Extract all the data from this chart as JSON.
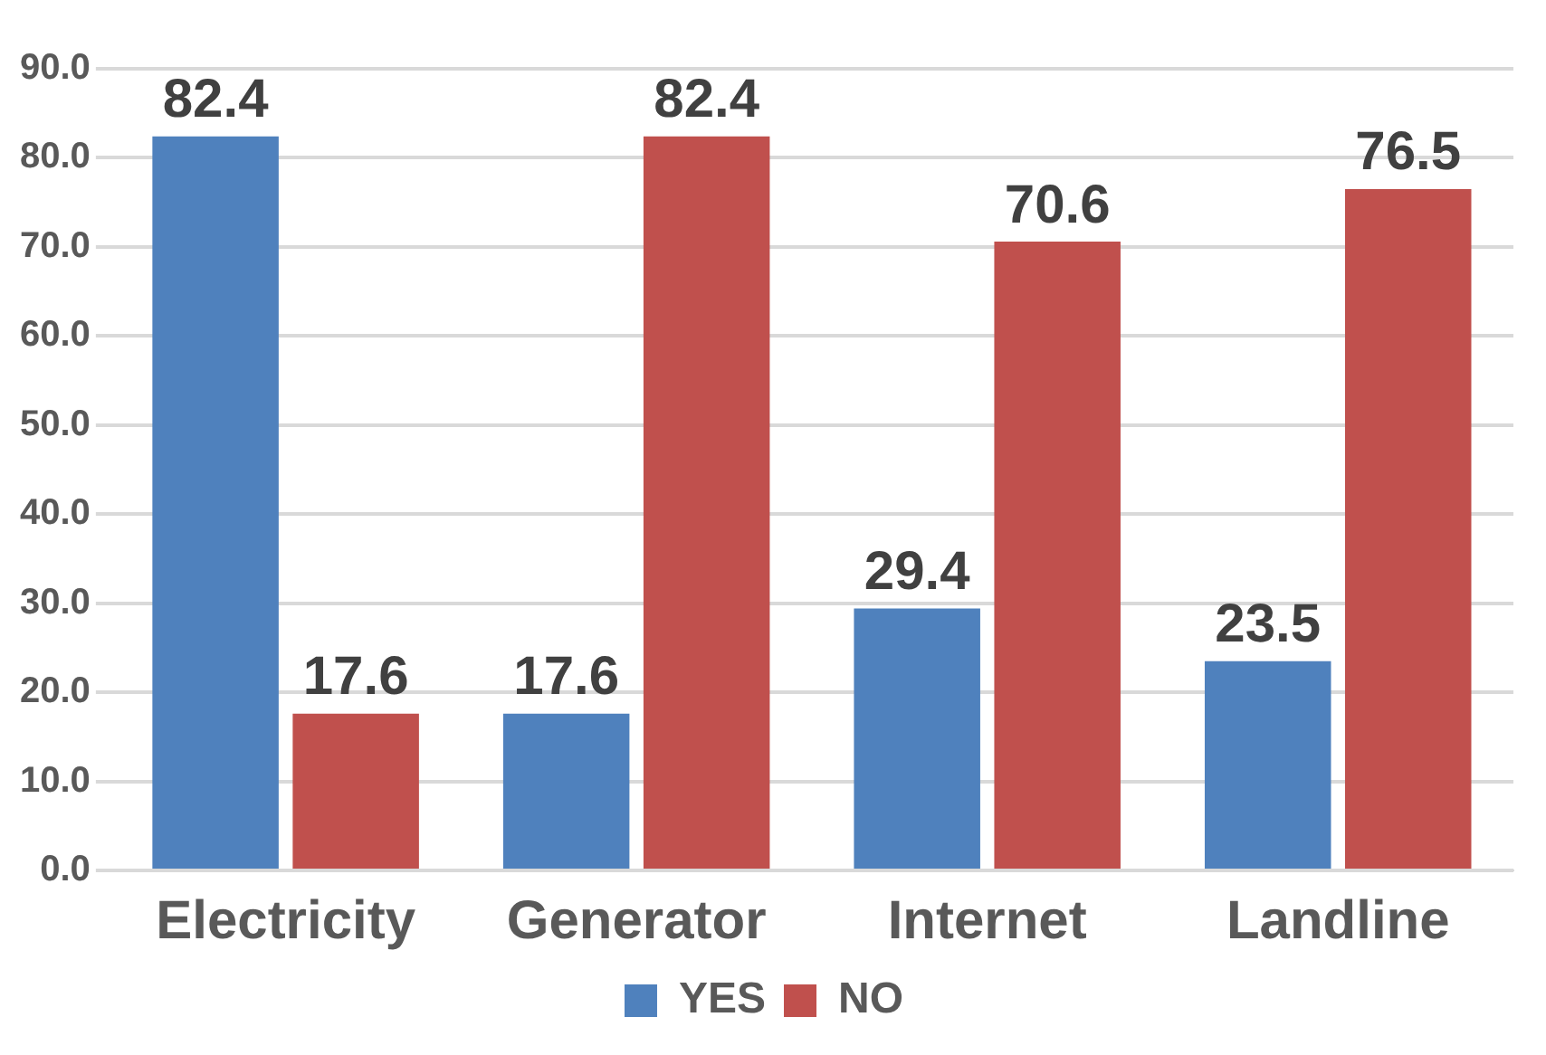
{
  "chart_data": {
    "type": "bar",
    "categories": [
      "Electricity",
      "Generator",
      "Internet",
      "Landline"
    ],
    "series": [
      {
        "name": "YES",
        "color": "#4f81bd",
        "values": [
          82.4,
          17.6,
          29.4,
          23.5
        ]
      },
      {
        "name": "NO",
        "color": "#c0504d",
        "values": [
          17.6,
          82.4,
          70.6,
          76.5
        ]
      }
    ],
    "ylim": [
      0,
      90
    ],
    "yticks": [
      {
        "value": 0,
        "label": "0.0"
      },
      {
        "value": 10,
        "label": "10.0"
      },
      {
        "value": 20,
        "label": "20.0"
      },
      {
        "value": 30,
        "label": "30.0"
      },
      {
        "value": 40,
        "label": "40.0"
      },
      {
        "value": 50,
        "label": "50.0"
      },
      {
        "value": 60,
        "label": "60.0"
      },
      {
        "value": 70,
        "label": "70.0"
      },
      {
        "value": 80,
        "label": "80.0"
      },
      {
        "value": 90,
        "label": "90.0"
      }
    ],
    "grid": "y",
    "legend": "bottom",
    "data_labels": true
  }
}
